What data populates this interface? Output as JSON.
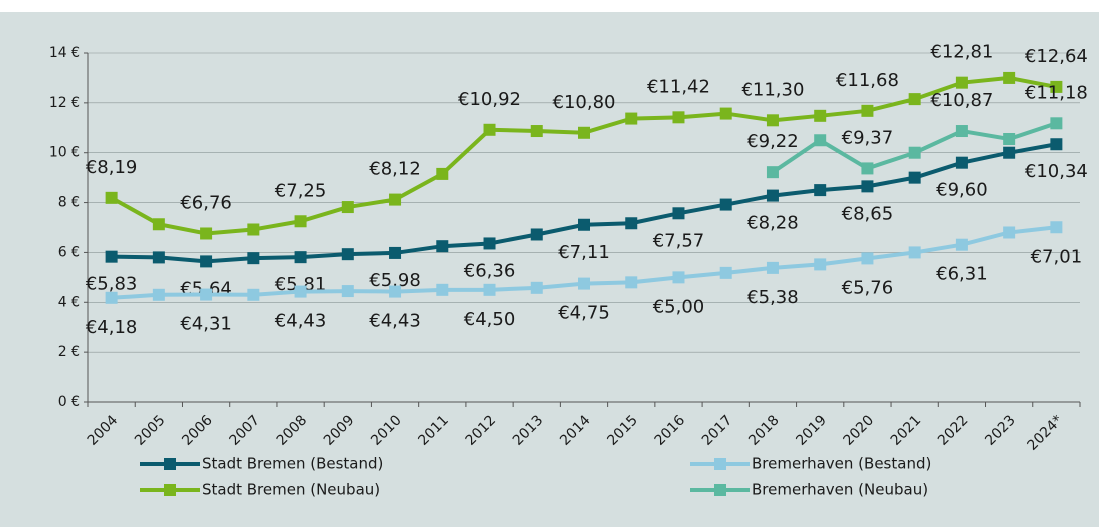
{
  "chart_data": {
    "type": "line",
    "categories": [
      "2004",
      "2005",
      "2006",
      "2007",
      "2008",
      "2009",
      "2010",
      "2011",
      "2012",
      "2013",
      "2014",
      "2015",
      "2016",
      "2017",
      "2018",
      "2019",
      "2020",
      "2021",
      "2022",
      "2023",
      "2024*"
    ],
    "ylim": [
      0,
      14
    ],
    "yticks": [
      {
        "value": 0,
        "label": "0 €"
      },
      {
        "value": 2,
        "label": "2 €"
      },
      {
        "value": 4,
        "label": "4 €"
      },
      {
        "value": 6,
        "label": "6 €"
      },
      {
        "value": 8,
        "label": "8 €"
      },
      {
        "value": 10,
        "label": "10 €"
      },
      {
        "value": 12,
        "label": "12 €"
      },
      {
        "value": 14,
        "label": "14 €"
      }
    ],
    "grid": true,
    "legend": "bottom",
    "series": [
      {
        "name": "Stadt Bremen (Bestand)",
        "color": "#0b5b6e",
        "values": [
          5.83,
          5.8,
          5.64,
          5.77,
          5.81,
          5.93,
          5.98,
          6.25,
          6.36,
          6.72,
          7.11,
          7.17,
          7.57,
          7.92,
          8.28,
          8.5,
          8.65,
          9.0,
          9.6,
          10.0,
          10.34
        ],
        "value_labels": [
          "€5,83",
          null,
          "€5,64",
          null,
          "€5,81",
          null,
          "€5,98",
          null,
          "€6,36",
          null,
          "€7,11",
          null,
          "€7,57",
          null,
          "€8,28",
          null,
          "€8,65",
          null,
          "€9,60",
          null,
          "€10,34"
        ]
      },
      {
        "name": "Bremerhaven (Bestand)",
        "color": "#8ec9e0",
        "values": [
          4.18,
          4.3,
          4.31,
          4.3,
          4.43,
          4.45,
          4.43,
          4.5,
          4.5,
          4.58,
          4.75,
          4.8,
          5.0,
          5.18,
          5.38,
          5.52,
          5.76,
          6.0,
          6.31,
          6.8,
          7.01
        ],
        "value_labels": [
          "€4,18",
          null,
          "€4,31",
          null,
          "€4,43",
          null,
          "€4,43",
          null,
          "€4,50",
          null,
          "€4,75",
          null,
          "€5,00",
          null,
          "€5,38",
          null,
          "€5,76",
          null,
          "€6,31",
          null,
          "€7,01"
        ]
      },
      {
        "name": "Stadt Bremen (Neubau)",
        "color": "#7ab51d",
        "values": [
          8.19,
          7.13,
          6.76,
          6.92,
          7.25,
          7.82,
          8.12,
          9.15,
          10.92,
          10.87,
          10.8,
          11.37,
          11.42,
          11.57,
          11.3,
          11.48,
          11.68,
          12.15,
          12.81,
          13.0,
          12.64
        ],
        "value_labels": [
          "€8,19",
          null,
          "€6,76",
          null,
          "€7,25",
          null,
          "€8,12",
          null,
          "€10,92",
          null,
          "€10,80",
          null,
          "€11,42",
          null,
          "€11,30",
          null,
          "€11,68",
          null,
          "€12,81",
          null,
          "€12,64"
        ]
      },
      {
        "name": "Bremerhaven (Neubau)",
        "color": "#5bb8a0",
        "values": [
          null,
          null,
          null,
          null,
          null,
          null,
          null,
          null,
          null,
          null,
          null,
          null,
          null,
          null,
          9.22,
          10.5,
          9.37,
          10.0,
          10.87,
          10.55,
          11.18
        ],
        "value_labels": [
          null,
          null,
          null,
          null,
          null,
          null,
          null,
          null,
          null,
          null,
          null,
          null,
          null,
          null,
          "€9,22",
          null,
          "€9,37",
          null,
          "€10,87",
          null,
          "€11,18"
        ]
      }
    ]
  }
}
